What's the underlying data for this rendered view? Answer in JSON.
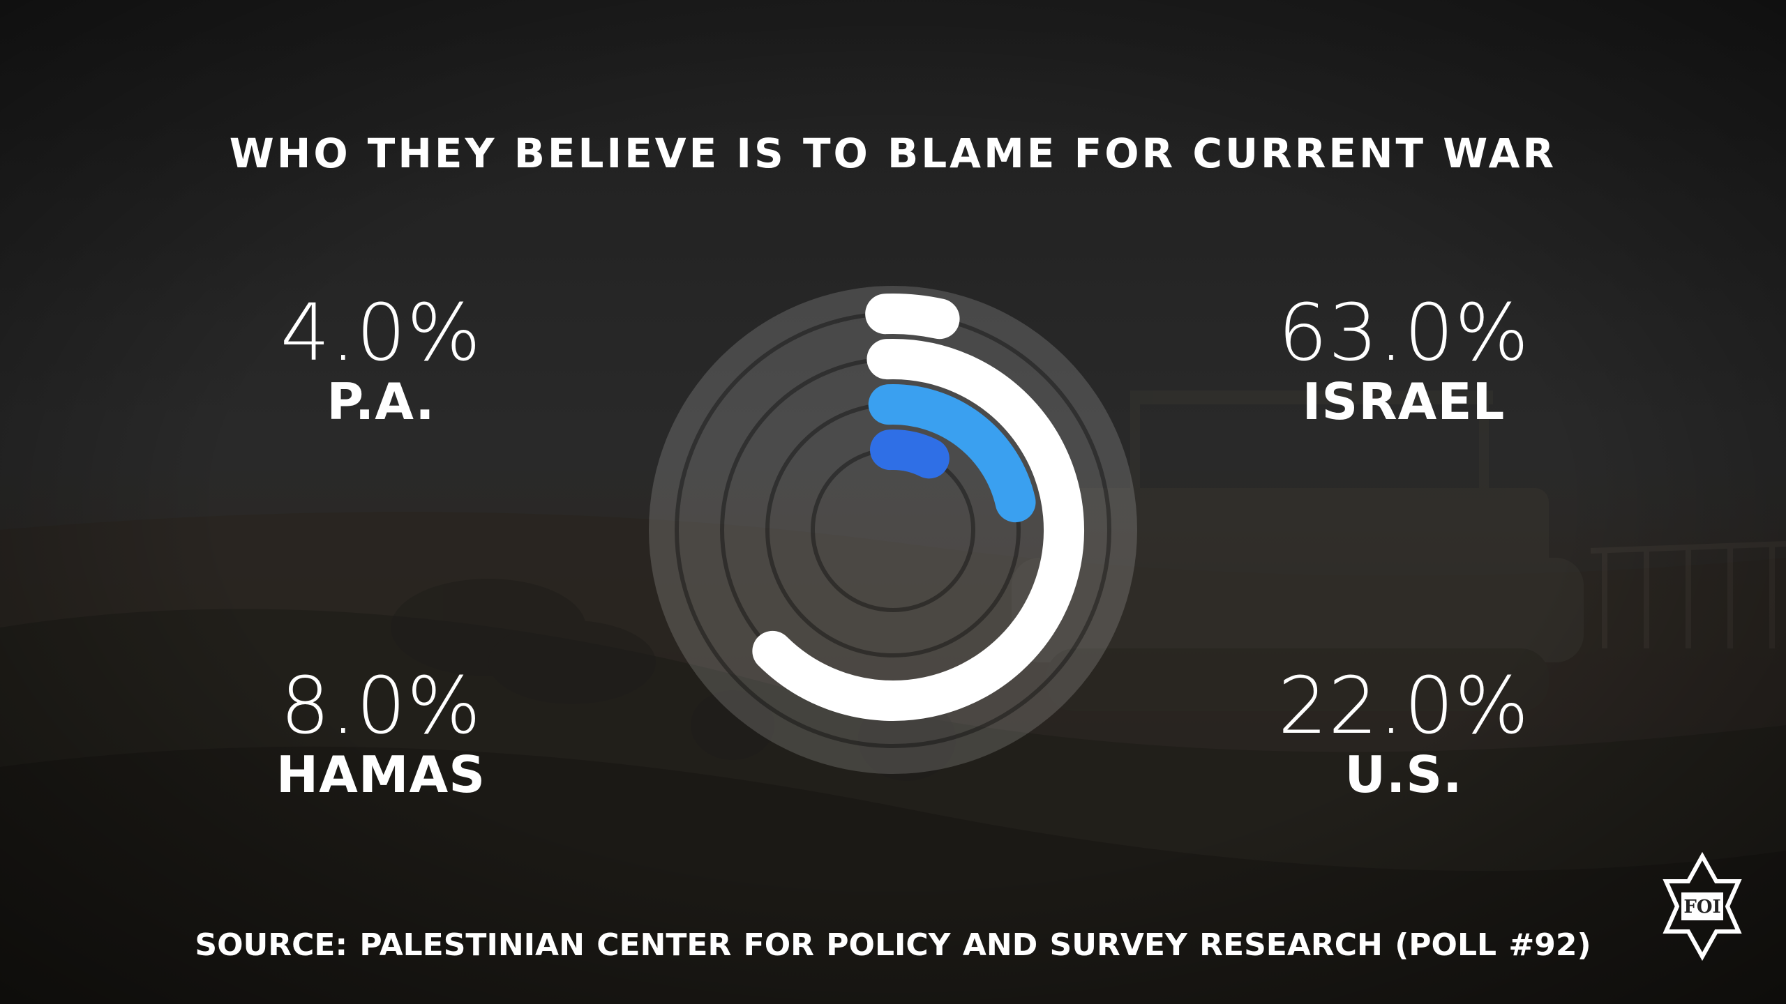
{
  "title": "WHO THEY BELIEVE IS TO BLAME FOR CURRENT WAR",
  "stats": {
    "pa": {
      "value": "4.0%",
      "label": "P.A."
    },
    "israel": {
      "value": "63.0%",
      "label": "ISRAEL"
    },
    "hamas": {
      "value": "8.0%",
      "label": "HAMAS"
    },
    "us": {
      "value": "22.0%",
      "label": "U.S."
    }
  },
  "source": "SOURCE: PALESTINIAN CENTER FOR POLICY AND SURVEY RESEARCH  (POLL #92)",
  "logo": {
    "text": "FOI"
  },
  "colors": {
    "white_arc": "#ffffff",
    "light_blue_arc": "#3aa0f0",
    "blue_arc": "#2f6fe6",
    "track": "#ffffff"
  },
  "chart_data": {
    "type": "radial-bar",
    "categories": [
      "P.A.",
      "ISRAEL",
      "U.S.",
      "HAMAS"
    ],
    "values": [
      4.0,
      63.0,
      22.0,
      8.0
    ],
    "unit": "%"
  }
}
